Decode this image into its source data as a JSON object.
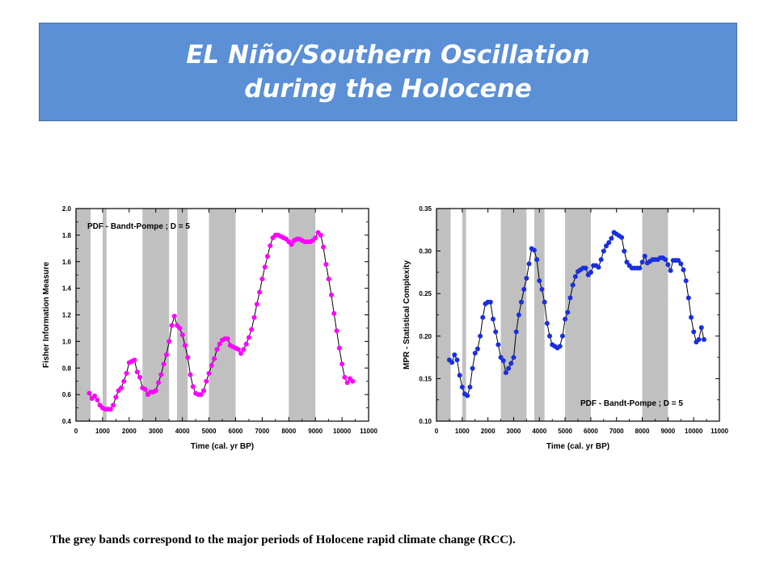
{
  "title": {
    "line1": "EL Niño/Southern Oscillation",
    "line2": "during the Holocene"
  },
  "caption": "The grey bands correspond to the major periods of Holocene rapid climate change (RCC).",
  "colors": {
    "title_bg": "#5b8fd6",
    "band": "#c0c0c0",
    "series_left": "#ff00ff",
    "series_right": "#1a2fe0"
  },
  "chart_data": [
    {
      "type": "scatter",
      "xlabel": "Time (cal. yr BP)",
      "ylabel": "Fisher  Information  Measure",
      "annotation": "PDF - Bandt-Pompe ; D = 5",
      "xlim": [
        0,
        11000
      ],
      "ylim": [
        0.4,
        2.0
      ],
      "xticks": [
        0,
        1000,
        2000,
        3000,
        4000,
        5000,
        6000,
        7000,
        8000,
        9000,
        10000,
        11000
      ],
      "yticks": [
        0.4,
        0.6,
        0.8,
        1.0,
        1.2,
        1.4,
        1.6,
        1.8,
        2.0
      ],
      "ytick_labels": [
        "0.4",
        "0.6",
        "0.8",
        "1.0",
        "1.2",
        "1.4",
        "1.6",
        "1.8",
        "2.0"
      ],
      "bands": [
        [
          0,
          550
        ],
        [
          1000,
          1150
        ],
        [
          2500,
          3500
        ],
        [
          3800,
          4200
        ],
        [
          5000,
          6000
        ],
        [
          8000,
          9000
        ]
      ],
      "series": [
        {
          "marker_color": "#ff00ff",
          "x": [
            500,
            600,
            700,
            800,
            900,
            1000,
            1100,
            1200,
            1300,
            1400,
            1500,
            1600,
            1700,
            1800,
            1900,
            2000,
            2100,
            2200,
            2300,
            2400,
            2500,
            2600,
            2700,
            2800,
            2900,
            3000,
            3100,
            3200,
            3300,
            3400,
            3500,
            3600,
            3700,
            3800,
            3900,
            4000,
            4100,
            4200,
            4300,
            4400,
            4500,
            4600,
            4700,
            4800,
            4900,
            5000,
            5100,
            5200,
            5300,
            5400,
            5500,
            5600,
            5700,
            5800,
            5900,
            6000,
            6100,
            6200,
            6300,
            6400,
            6500,
            6600,
            6700,
            6800,
            6900,
            7000,
            7100,
            7200,
            7300,
            7400,
            7500,
            7600,
            7700,
            7800,
            7900,
            8000,
            8100,
            8200,
            8300,
            8400,
            8500,
            8600,
            8700,
            8800,
            8900,
            9000,
            9100,
            9200,
            9300,
            9400,
            9500,
            9600,
            9700,
            9800,
            9900,
            10000,
            10100,
            10200,
            10300,
            10400
          ],
          "y": [
            0.61,
            0.57,
            0.59,
            0.56,
            0.52,
            0.5,
            0.49,
            0.49,
            0.49,
            0.52,
            0.58,
            0.63,
            0.65,
            0.7,
            0.76,
            0.84,
            0.85,
            0.86,
            0.77,
            0.73,
            0.65,
            0.64,
            0.6,
            0.62,
            0.62,
            0.63,
            0.69,
            0.75,
            0.83,
            0.9,
            1.0,
            1.12,
            1.19,
            1.12,
            1.1,
            1.05,
            0.97,
            0.88,
            0.75,
            0.66,
            0.61,
            0.6,
            0.6,
            0.63,
            0.7,
            0.76,
            0.82,
            0.87,
            0.94,
            0.98,
            1.01,
            1.02,
            1.02,
            0.97,
            0.96,
            0.95,
            0.94,
            0.91,
            0.94,
            0.98,
            1.03,
            1.09,
            1.18,
            1.28,
            1.37,
            1.47,
            1.56,
            1.64,
            1.72,
            1.78,
            1.8,
            1.8,
            1.79,
            1.78,
            1.77,
            1.75,
            1.73,
            1.76,
            1.77,
            1.77,
            1.76,
            1.75,
            1.75,
            1.75,
            1.76,
            1.78,
            1.82,
            1.8,
            1.71,
            1.58,
            1.47,
            1.35,
            1.21,
            1.08,
            0.95,
            0.83,
            0.73,
            0.69,
            0.72,
            0.7
          ]
        }
      ]
    },
    {
      "type": "scatter",
      "xlabel": "Time (cal. yr BP)",
      "ylabel": "MPR - Statistical  Complexity",
      "annotation": "PDF - Bandt-Pompe ; D = 5",
      "xlim": [
        0,
        11000
      ],
      "ylim": [
        0.1,
        0.35
      ],
      "xticks": [
        0,
        1000,
        2000,
        3000,
        4000,
        5000,
        6000,
        7000,
        8000,
        9000,
        10000,
        11000
      ],
      "yticks": [
        0.1,
        0.15,
        0.2,
        0.25,
        0.3,
        0.35
      ],
      "ytick_labels": [
        "0.10",
        "0.15",
        "0.20",
        "0.25",
        "0.30",
        "0.35"
      ],
      "bands": [
        [
          0,
          550
        ],
        [
          1000,
          1150
        ],
        [
          2500,
          3500
        ],
        [
          3800,
          4200
        ],
        [
          5000,
          6000
        ],
        [
          8000,
          9000
        ]
      ],
      "series": [
        {
          "marker_color": "#1a2fe0",
          "x": [
            500,
            600,
            700,
            800,
            900,
            1000,
            1100,
            1200,
            1300,
            1400,
            1500,
            1600,
            1700,
            1800,
            1900,
            2000,
            2100,
            2200,
            2300,
            2400,
            2500,
            2600,
            2700,
            2800,
            2900,
            3000,
            3100,
            3200,
            3300,
            3400,
            3500,
            3600,
            3700,
            3800,
            3900,
            4000,
            4100,
            4200,
            4300,
            4400,
            4500,
            4600,
            4700,
            4800,
            4900,
            5000,
            5100,
            5200,
            5300,
            5400,
            5500,
            5600,
            5700,
            5800,
            5900,
            6000,
            6100,
            6200,
            6300,
            6400,
            6500,
            6600,
            6700,
            6800,
            6900,
            7000,
            7100,
            7200,
            7300,
            7400,
            7500,
            7600,
            7700,
            7800,
            7900,
            8000,
            8100,
            8200,
            8300,
            8400,
            8500,
            8600,
            8700,
            8800,
            8900,
            9000,
            9100,
            9200,
            9300,
            9400,
            9500,
            9600,
            9700,
            9800,
            9900,
            10000,
            10100,
            10200,
            10300,
            10400
          ],
          "y": [
            0.172,
            0.169,
            0.178,
            0.172,
            0.154,
            0.14,
            0.132,
            0.13,
            0.14,
            0.162,
            0.18,
            0.185,
            0.2,
            0.222,
            0.238,
            0.24,
            0.24,
            0.22,
            0.205,
            0.19,
            0.175,
            0.171,
            0.157,
            0.162,
            0.168,
            0.175,
            0.205,
            0.225,
            0.24,
            0.255,
            0.268,
            0.285,
            0.303,
            0.301,
            0.29,
            0.265,
            0.255,
            0.24,
            0.215,
            0.2,
            0.19,
            0.188,
            0.186,
            0.188,
            0.2,
            0.22,
            0.228,
            0.245,
            0.26,
            0.27,
            0.276,
            0.278,
            0.28,
            0.28,
            0.272,
            0.275,
            0.283,
            0.283,
            0.281,
            0.29,
            0.3,
            0.306,
            0.31,
            0.315,
            0.322,
            0.32,
            0.318,
            0.316,
            0.3,
            0.287,
            0.283,
            0.28,
            0.28,
            0.28,
            0.28,
            0.287,
            0.294,
            0.286,
            0.288,
            0.29,
            0.29,
            0.29,
            0.292,
            0.292,
            0.29,
            0.284,
            0.277,
            0.289,
            0.289,
            0.289,
            0.285,
            0.278,
            0.265,
            0.245,
            0.222,
            0.205,
            0.193,
            0.196,
            0.21,
            0.196
          ]
        }
      ]
    }
  ]
}
